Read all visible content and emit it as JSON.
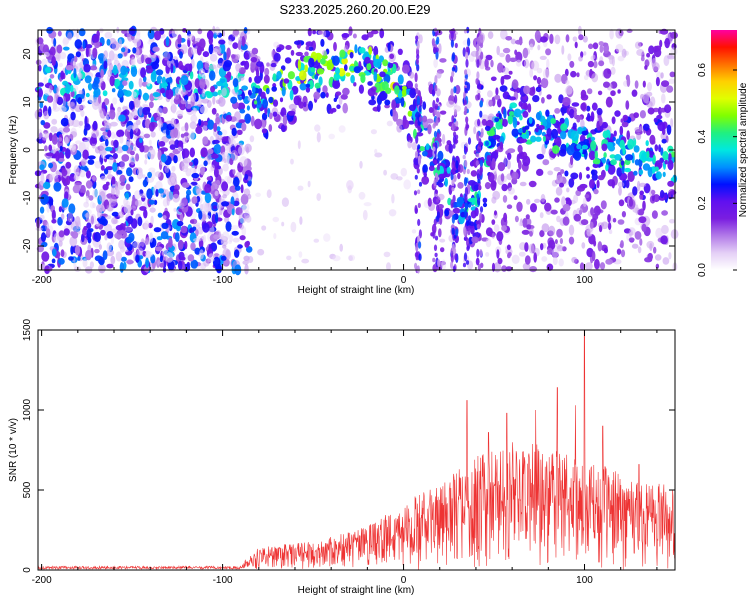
{
  "title": "S233.2025.260.20.00.E29",
  "chart_data": [
    {
      "type": "heatmap",
      "xlabel": "Height of straight line (km)",
      "ylabel": "Frequency (Hz)",
      "xlim": [
        -202,
        150
      ],
      "ylim": [
        -25,
        25
      ],
      "xticks": [
        -200,
        -100,
        0,
        100
      ],
      "yticks": [
        -20,
        -10,
        0,
        10,
        20
      ],
      "colorbar": {
        "label": "Normalized spectral amplitude",
        "range": [
          0.0,
          0.72
        ],
        "ticks": [
          "0.0",
          "0.2",
          "0.4",
          "0.6"
        ],
        "colors": [
          "#ffffff",
          "#e4cff6",
          "#b27ae8",
          "#7a1ee0",
          "#6010f0",
          "#0010ff",
          "#0090ff",
          "#00e8e0",
          "#20f080",
          "#80ff00",
          "#e0ff00",
          "#ffd000",
          "#ff7000",
          "#ff1000",
          "#ff00a0"
        ]
      },
      "ridge": [
        {
          "x": -130,
          "y": 14
        },
        {
          "x": -100,
          "y": 14
        },
        {
          "x": -85,
          "y": 13
        },
        {
          "x": -75,
          "y": 11
        },
        {
          "x": -60,
          "y": 15
        },
        {
          "x": -40,
          "y": 17
        },
        {
          "x": -20,
          "y": 18
        },
        {
          "x": -5,
          "y": 14
        },
        {
          "x": 0,
          "y": 12
        },
        {
          "x": 10,
          "y": 3
        },
        {
          "x": 20,
          "y": -3
        },
        {
          "x": 28,
          "y": -10
        },
        {
          "x": 35,
          "y": -13
        },
        {
          "x": 42,
          "y": -8
        },
        {
          "x": 50,
          "y": 5
        },
        {
          "x": 60,
          "y": 6
        },
        {
          "x": 80,
          "y": 4
        },
        {
          "x": 100,
          "y": 1
        },
        {
          "x": 120,
          "y": -1
        },
        {
          "x": 140,
          "y": -2
        },
        {
          "x": 150,
          "y": -3
        }
      ]
    },
    {
      "type": "line",
      "xlabel": "Height of straight line (km)",
      "ylabel": "SNR (10 * v/v)",
      "xlim": [
        -202,
        150
      ],
      "ylim": [
        0,
        1500
      ],
      "xticks": [
        -200,
        -100,
        0,
        100
      ],
      "yticks": [
        0,
        500,
        1000,
        1500
      ],
      "line_color": "#ee3333",
      "envelope": [
        {
          "x": -202,
          "y": 20
        },
        {
          "x": -90,
          "y": 20
        },
        {
          "x": -80,
          "y": 140
        },
        {
          "x": -50,
          "y": 170
        },
        {
          "x": -20,
          "y": 260
        },
        {
          "x": 0,
          "y": 400
        },
        {
          "x": 20,
          "y": 520
        },
        {
          "x": 40,
          "y": 680
        },
        {
          "x": 60,
          "y": 780
        },
        {
          "x": 80,
          "y": 740
        },
        {
          "x": 100,
          "y": 660
        },
        {
          "x": 120,
          "y": 580
        },
        {
          "x": 150,
          "y": 520
        }
      ],
      "peaks": [
        {
          "x": 35,
          "y": 1060
        },
        {
          "x": 47,
          "y": 860
        },
        {
          "x": 57,
          "y": 980
        },
        {
          "x": 73,
          "y": 1000
        },
        {
          "x": 85,
          "y": 1140
        },
        {
          "x": 95,
          "y": 1030
        },
        {
          "x": 100,
          "y": 1500
        },
        {
          "x": 110,
          "y": 900
        },
        {
          "x": 130,
          "y": 660
        }
      ]
    }
  ]
}
